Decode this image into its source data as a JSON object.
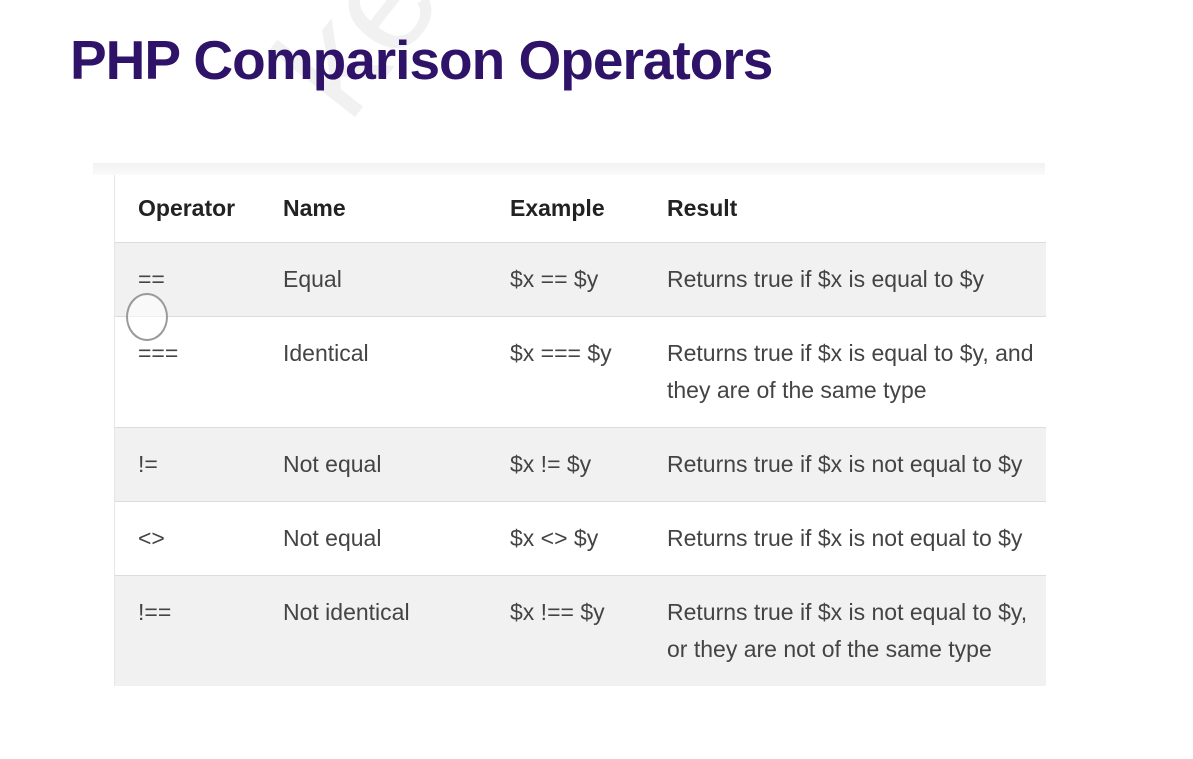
{
  "title": "PHP Comparison Operators",
  "watermark": "keralaa",
  "table": {
    "headers": [
      "Operator",
      "Name",
      "Example",
      "Result"
    ],
    "rows": [
      {
        "operator": "==",
        "name": "Equal",
        "example": "$x == $y",
        "result": "Returns true if $x is equal to $y"
      },
      {
        "operator": "===",
        "name": "Identical",
        "example": "$x === $y",
        "result": "Returns true if $x is equal to $y, and they are of the same type"
      },
      {
        "operator": "!=",
        "name": "Not equal",
        "example": "$x != $y",
        "result": "Returns true if $x is not equal to $y"
      },
      {
        "operator": "<>",
        "name": "Not equal",
        "example": "$x <> $y",
        "result": "Returns true if $x is not equal to $y"
      },
      {
        "operator": "!==",
        "name": "Not identical",
        "example": "$x !== $y",
        "result": "Returns true if $x is not equal to $y, or they are not of the same type"
      }
    ]
  },
  "colors": {
    "title": "#2e1368",
    "row_shade": "#f1f1f1",
    "text": "#444444"
  }
}
